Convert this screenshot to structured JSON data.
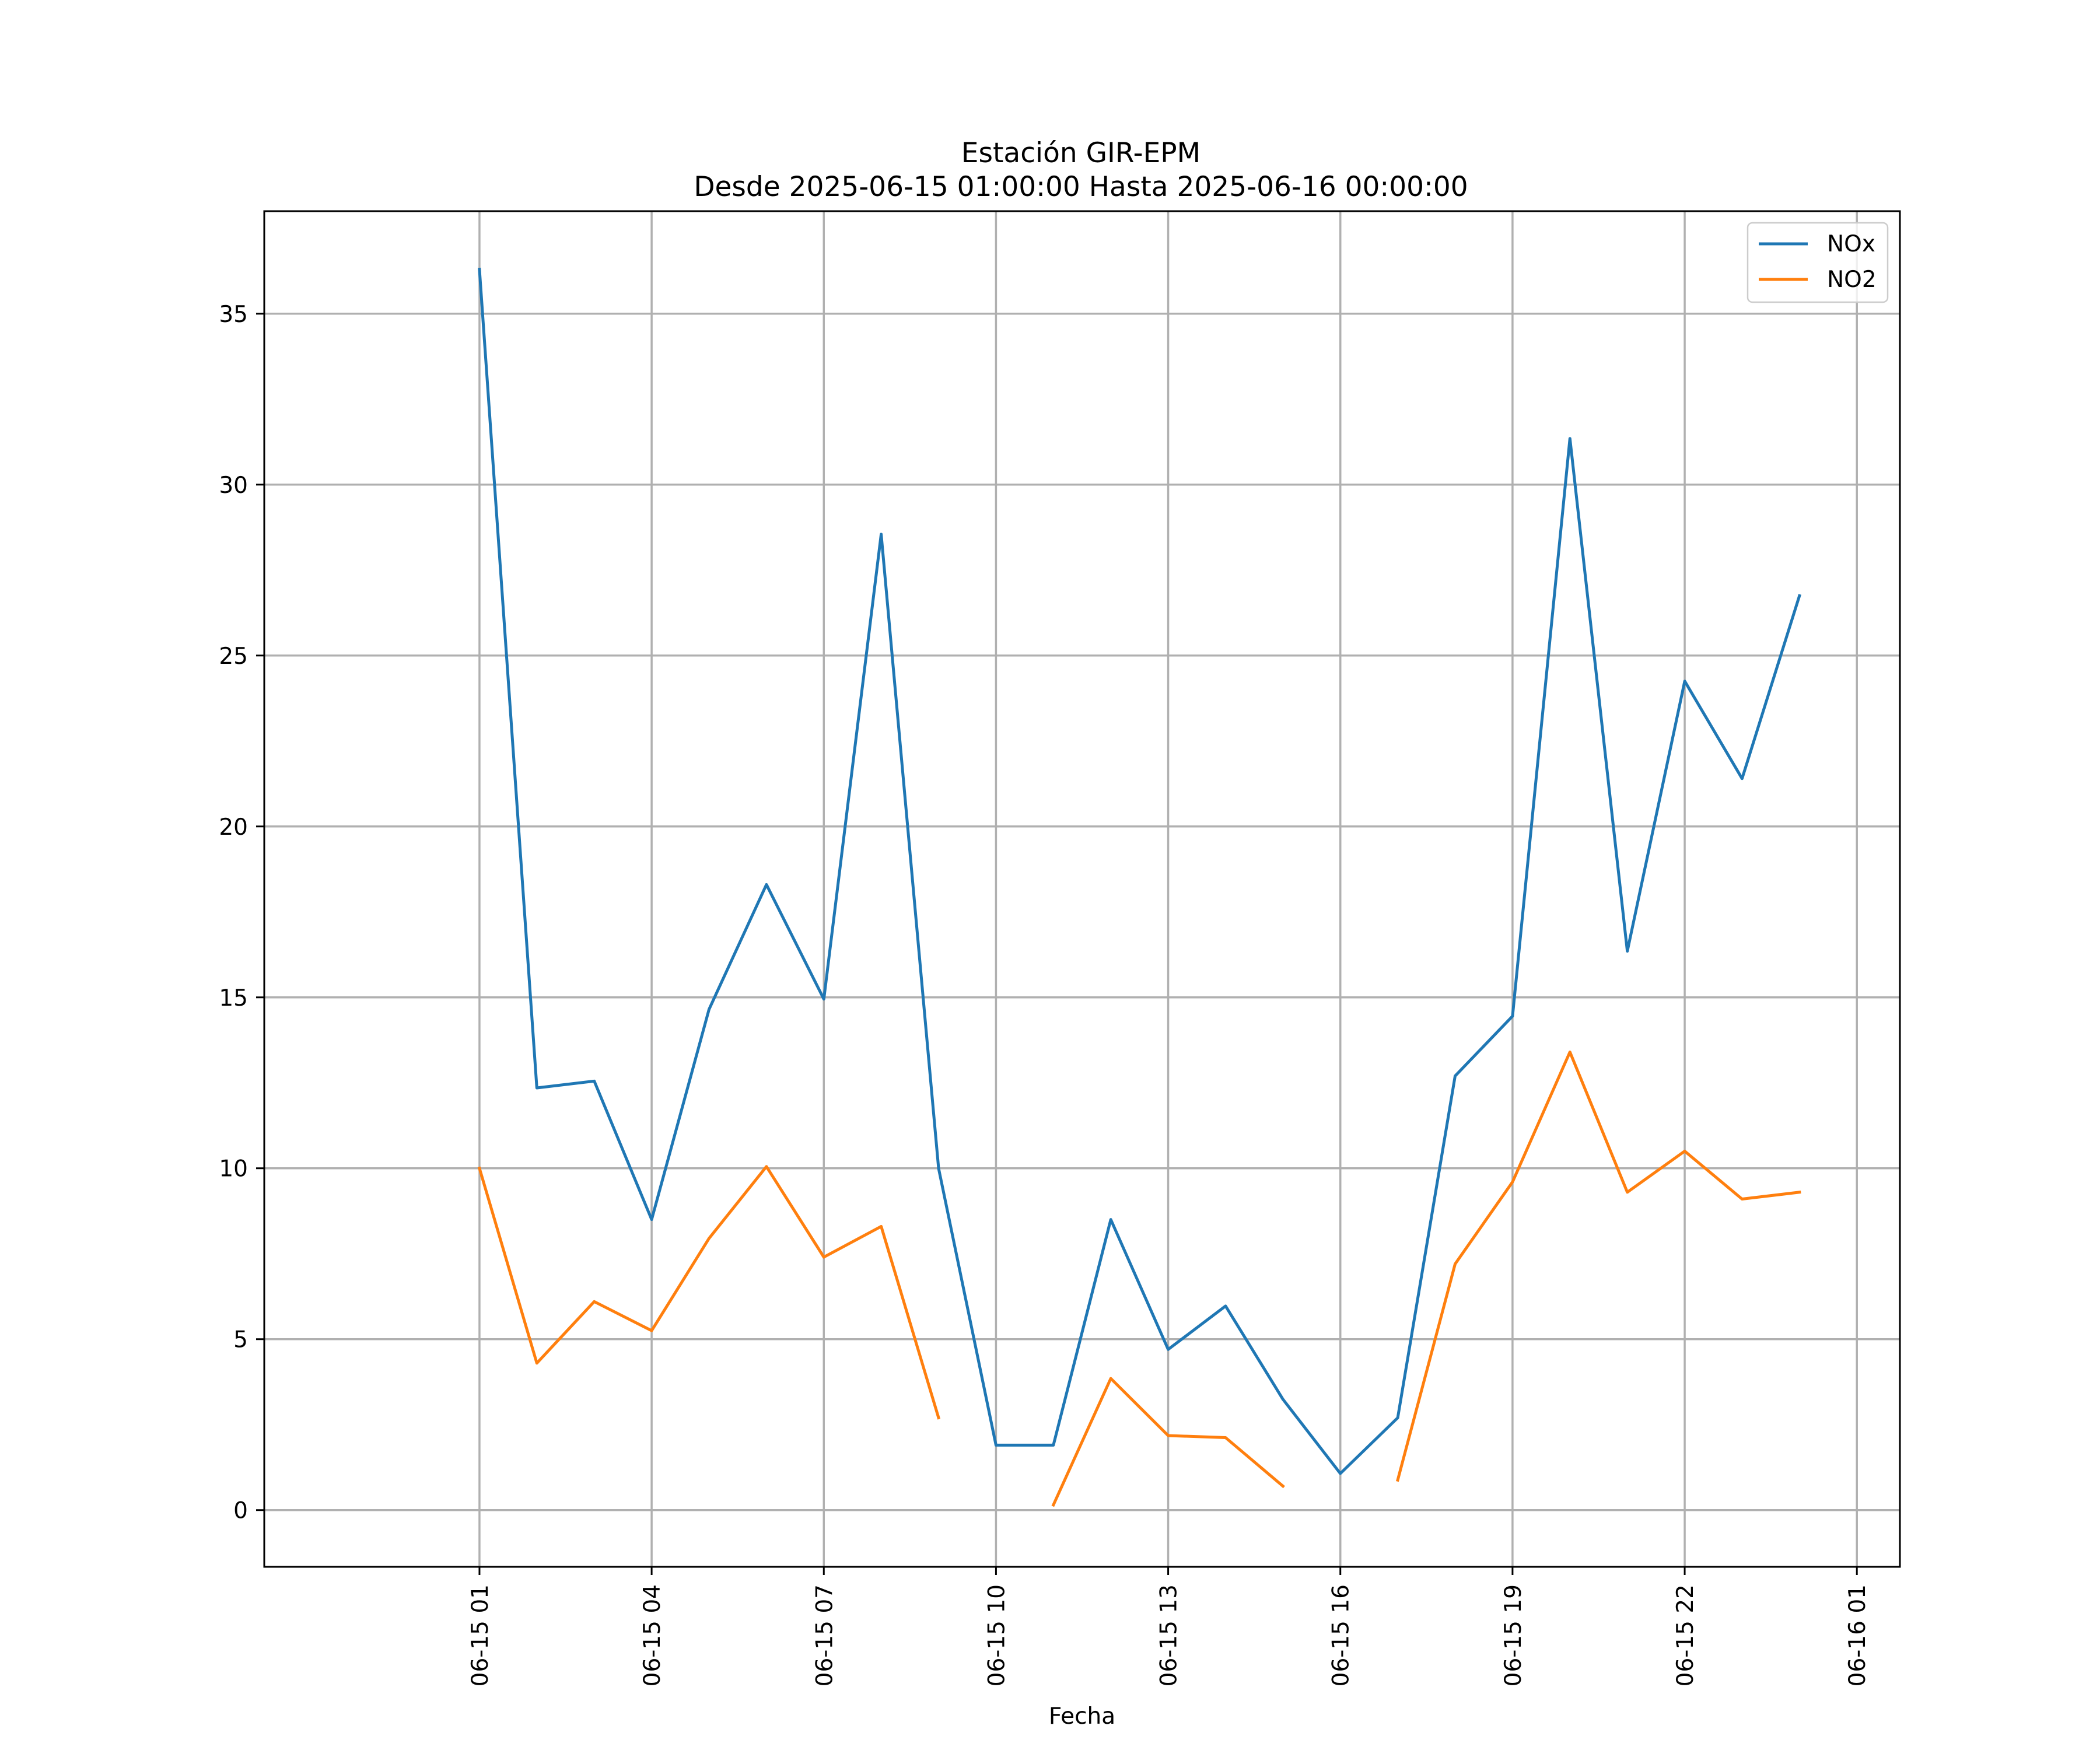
{
  "chart_data": {
    "type": "line",
    "title": "Estación GIR-EPM",
    "subtitle": "Desde 2025-06-15 01:00:00 Hasta 2025-06-16 00:00:00",
    "xlabel": "Fecha",
    "ylabel": "",
    "x": [
      "2025-06-15 01:00",
      "2025-06-15 02:00",
      "2025-06-15 03:00",
      "2025-06-15 04:00",
      "2025-06-15 05:00",
      "2025-06-15 06:00",
      "2025-06-15 07:00",
      "2025-06-15 08:00",
      "2025-06-15 09:00",
      "2025-06-15 10:00",
      "2025-06-15 11:00",
      "2025-06-15 12:00",
      "2025-06-15 13:00",
      "2025-06-15 14:00",
      "2025-06-15 15:00",
      "2025-06-15 16:00",
      "2025-06-15 17:00",
      "2025-06-15 18:00",
      "2025-06-15 19:00",
      "2025-06-15 20:00",
      "2025-06-15 21:00",
      "2025-06-15 22:00",
      "2025-06-15 23:00",
      "2025-06-16 00:00"
    ],
    "xlim": [
      "2025-06-14 21:15",
      "2025-06-16 01:45"
    ],
    "ylim": [
      -1.66,
      38.0
    ],
    "x_ticks": [
      {
        "x": "2025-06-15 01:00",
        "label": "06-15 01"
      },
      {
        "x": "2025-06-15 04:00",
        "label": "06-15 04"
      },
      {
        "x": "2025-06-15 07:00",
        "label": "06-15 07"
      },
      {
        "x": "2025-06-15 10:00",
        "label": "06-15 10"
      },
      {
        "x": "2025-06-15 13:00",
        "label": "06-15 13"
      },
      {
        "x": "2025-06-15 16:00",
        "label": "06-15 16"
      },
      {
        "x": "2025-06-15 19:00",
        "label": "06-15 19"
      },
      {
        "x": "2025-06-15 22:00",
        "label": "06-15 22"
      },
      {
        "x": "2025-06-16 01:00",
        "label": "06-16 01"
      }
    ],
    "y_ticks": [
      0,
      5,
      10,
      15,
      20,
      25,
      30,
      35
    ],
    "grid": true,
    "legend": {
      "position": "top-right"
    },
    "series": [
      {
        "name": "NOx",
        "color": "#1f77b4",
        "values": [
          36.3,
          12.35,
          12.55,
          8.5,
          14.65,
          18.3,
          14.95,
          28.55,
          10.0,
          1.9,
          1.9,
          8.5,
          4.7,
          5.97,
          3.24,
          1.07,
          2.7,
          12.7,
          14.45,
          31.35,
          16.35,
          24.25,
          21.4,
          26.75
        ]
      },
      {
        "name": "NO2",
        "color": "#ff7f0e",
        "values": [
          10.0,
          4.3,
          6.1,
          5.25,
          7.95,
          10.05,
          7.4,
          8.3,
          2.7,
          null,
          0.15,
          3.85,
          2.18,
          2.12,
          0.7,
          null,
          0.88,
          7.2,
          9.6,
          13.4,
          9.3,
          10.5,
          9.1,
          9.3
        ]
      }
    ]
  }
}
